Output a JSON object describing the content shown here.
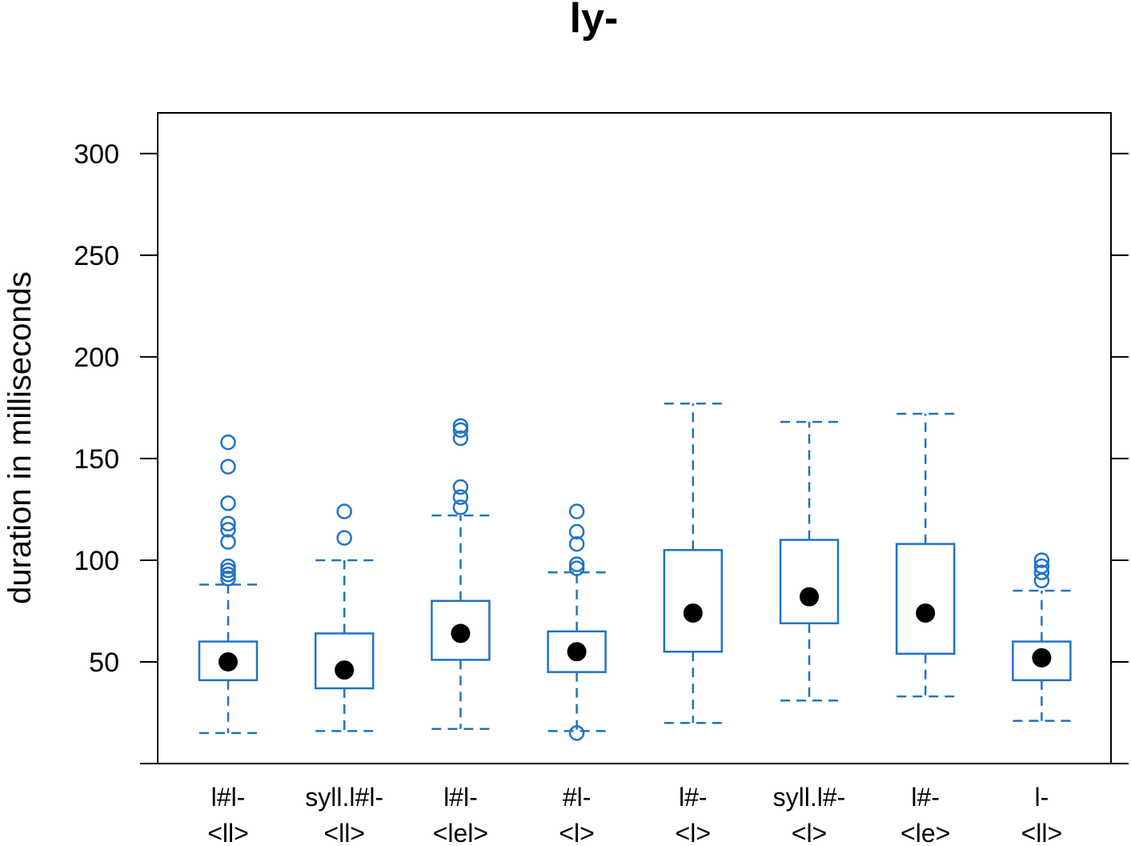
{
  "chart_data": {
    "type": "box",
    "title": "ly-",
    "xlabel": "",
    "ylabel": "duration in milliseconds",
    "ylim": [
      0,
      320
    ],
    "yticks": [
      50,
      100,
      150,
      200,
      250,
      300
    ],
    "grid": false,
    "box_color": "#1f73c6",
    "median_color": "#000000",
    "categories": [
      {
        "line1": "l#l-",
        "line2": "<ll>",
        "whisker_low": 15,
        "q1": 41,
        "median": 50,
        "q3": 60,
        "whisker_high": 88,
        "outliers": [
          91,
          93,
          95,
          97,
          109,
          115,
          118,
          128,
          146,
          158
        ]
      },
      {
        "line1": "syll.l#l-",
        "line2": "<ll>",
        "whisker_low": 16,
        "q1": 37,
        "median": 46,
        "q3": 64,
        "whisker_high": 100,
        "outliers": [
          111,
          124
        ]
      },
      {
        "line1": "l#l-",
        "line2": "<lel>",
        "whisker_low": 17,
        "q1": 51,
        "median": 64,
        "q3": 80,
        "whisker_high": 122,
        "outliers": [
          126,
          131,
          136,
          160,
          164,
          166
        ]
      },
      {
        "line1": "#l-",
        "line2": "<l>",
        "whisker_low": 16,
        "q1": 45,
        "median": 55,
        "q3": 65,
        "whisker_high": 94,
        "outliers": [
          15,
          96,
          98,
          108,
          114,
          124
        ]
      },
      {
        "line1": "l#-",
        "line2": "<l>",
        "whisker_low": 20,
        "q1": 55,
        "median": 74,
        "q3": 105,
        "whisker_high": 177,
        "outliers": []
      },
      {
        "line1": "syll.l#-",
        "line2": "<l>",
        "whisker_low": 31,
        "q1": 69,
        "median": 82,
        "q3": 110,
        "whisker_high": 168,
        "outliers": []
      },
      {
        "line1": "l#-",
        "line2": "<le>",
        "whisker_low": 33,
        "q1": 54,
        "median": 74,
        "q3": 108,
        "whisker_high": 172,
        "outliers": []
      },
      {
        "line1": "l-",
        "line2": "<ll>",
        "whisker_low": 21,
        "q1": 41,
        "median": 52,
        "q3": 60,
        "whisker_high": 85,
        "outliers": [
          90,
          94,
          97,
          100
        ]
      }
    ]
  }
}
